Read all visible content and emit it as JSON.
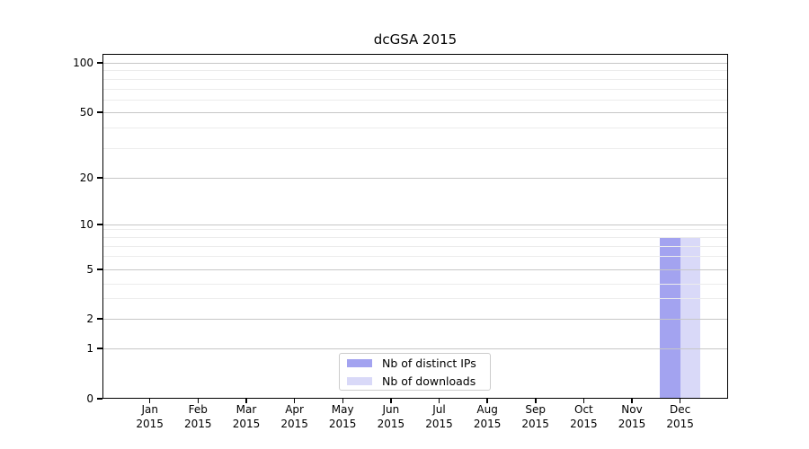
{
  "chart_data": {
    "type": "bar",
    "title": "dcGSA 2015",
    "categories": [
      "Jan 2015",
      "Feb 2015",
      "Mar 2015",
      "Apr 2015",
      "May 2015",
      "Jun 2015",
      "Jul 2015",
      "Aug 2015",
      "Sep 2015",
      "Oct 2015",
      "Nov 2015",
      "Dec 2015"
    ],
    "x_tick_months": [
      "Jan",
      "Feb",
      "Mar",
      "Apr",
      "May",
      "Jun",
      "Jul",
      "Aug",
      "Sep",
      "Oct",
      "Nov",
      "Dec"
    ],
    "x_tick_year": "2015",
    "series": [
      {
        "name": "Nb of distinct IPs",
        "color": "#a3a3f0",
        "values": [
          0,
          0,
          0,
          0,
          0,
          0,
          0,
          0,
          0,
          0,
          0,
          8
        ]
      },
      {
        "name": "Nb of downloads",
        "color": "#d9d9f8",
        "values": [
          0,
          0,
          0,
          0,
          0,
          0,
          0,
          0,
          0,
          0,
          0,
          8
        ]
      }
    ],
    "yscale": "symlog",
    "ylim": [
      0,
      110
    ],
    "y_ticks_major": [
      0,
      1,
      2,
      5,
      10,
      20,
      50,
      100
    ],
    "y_ticks_minor": [
      3,
      4,
      6,
      7,
      8,
      9,
      30,
      40,
      60,
      70,
      80,
      90
    ],
    "grid": true,
    "legend_position": "lower center",
    "colors": {
      "major_grid": "#c7c7c7",
      "minor_grid": "#ececec",
      "axis": "#000000",
      "background": "#ffffff"
    }
  }
}
